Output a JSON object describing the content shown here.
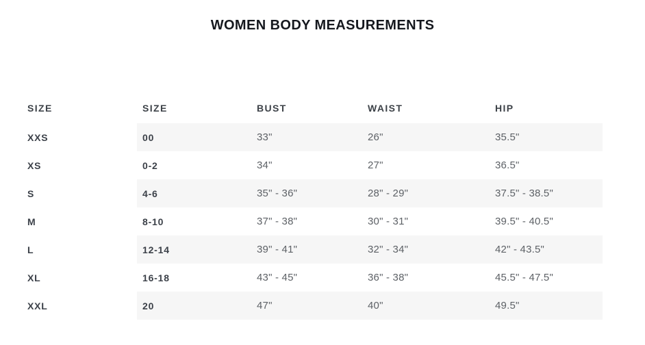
{
  "page": {
    "title": "WOMEN BODY MEASUREMENTS"
  },
  "size_chart": {
    "columns": [
      "SIZE",
      "SIZE",
      "BUST",
      "WAIST",
      "HIP"
    ],
    "rows": [
      {
        "size": "XXS",
        "numeric_size": "00",
        "bust": "33\"",
        "waist": "26\"",
        "hip": "35.5\""
      },
      {
        "size": "XS",
        "numeric_size": "0-2",
        "bust": "34\"",
        "waist": "27\"",
        "hip": "36.5\""
      },
      {
        "size": "S",
        "numeric_size": "4-6",
        "bust": "35\" - 36\"",
        "waist": "28\" - 29\"",
        "hip": "37.5\" - 38.5\""
      },
      {
        "size": "M",
        "numeric_size": "8-10",
        "bust": "37\" - 38\"",
        "waist": "30\" - 31\"",
        "hip": "39.5\" - 40.5\""
      },
      {
        "size": "L",
        "numeric_size": "12-14",
        "bust": "39\" - 41\"",
        "waist": "32\" - 34\"",
        "hip": "42\" - 43.5\""
      },
      {
        "size": "XL",
        "numeric_size": "16-18",
        "bust": "43\" - 45\"",
        "waist": "36\" - 38\"",
        "hip": "45.5\" - 47.5\""
      },
      {
        "size": "XXL",
        "numeric_size": "20",
        "bust": "47\"",
        "waist": "40\"",
        "hip": "49.5\""
      }
    ],
    "colors": {
      "stripe_background": "#f6f6f6",
      "header_text": "#3d4248",
      "label_text": "#3c4149",
      "value_text": "#5d6166",
      "title_text": "#15181e",
      "page_background": "#ffffff"
    }
  },
  "chart_data": {
    "type": "table",
    "title": "WOMEN BODY MEASUREMENTS",
    "columns": [
      "SIZE",
      "SIZE",
      "BUST",
      "WAIST",
      "HIP"
    ],
    "rows": [
      [
        "XXS",
        "00",
        "33\"",
        "26\"",
        "35.5\""
      ],
      [
        "XS",
        "0-2",
        "34\"",
        "27\"",
        "36.5\""
      ],
      [
        "S",
        "4-6",
        "35\" - 36\"",
        "28\" - 29\"",
        "37.5\" - 38.5\""
      ],
      [
        "M",
        "8-10",
        "37\" - 38\"",
        "30\" - 31\"",
        "39.5\" - 40.5\""
      ],
      [
        "L",
        "12-14",
        "39\" - 41\"",
        "32\" - 34\"",
        "42\" - 43.5\""
      ],
      [
        "XL",
        "16-18",
        "43\" - 45\"",
        "36\" - 38\"",
        "45.5\" - 47.5\""
      ],
      [
        "XXL",
        "20",
        "47\"",
        "40\"",
        "49.5\""
      ]
    ]
  }
}
